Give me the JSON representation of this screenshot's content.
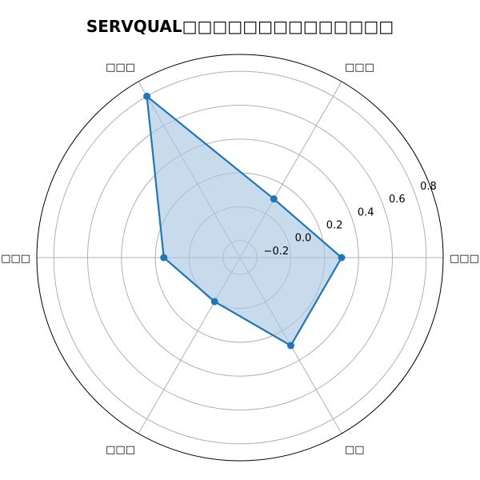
{
  "chart_data": {
    "type": "radar",
    "title": "SERVQUAL□□□□□□□□□□□□□□",
    "categories": [
      "□□□",
      "□□□",
      "□□□",
      "□□□",
      "□□□",
      "□□"
    ],
    "series": [
      {
        "values": [
          0.3,
          0.1,
          0.8,
          0.15,
          0.0,
          0.3
        ]
      }
    ],
    "rlim": [
      -0.3,
      0.9
    ],
    "rticks": [
      -0.2,
      0.0,
      0.2,
      0.4,
      0.6,
      0.8
    ],
    "rtick_labels": [
      "−0.2",
      "0.0",
      "0.2",
      "0.4",
      "0.6",
      "0.8"
    ],
    "grid": true,
    "colors": {
      "line": "#1f77b4",
      "fill": "#a9c7e3",
      "grid": "#b0b0b0",
      "spine": "#000000"
    }
  }
}
